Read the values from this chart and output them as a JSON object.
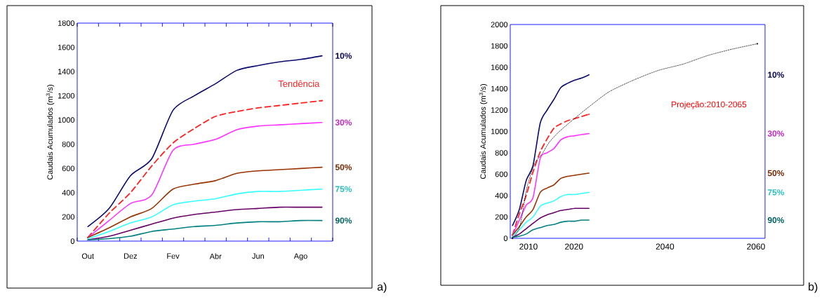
{
  "chart_data": [
    {
      "type": "line",
      "categories": [
        "Out",
        null,
        "Dez",
        null,
        "Fev",
        null,
        "Abr",
        null,
        "Jun",
        null,
        "Ago",
        null
      ],
      "ylabel": "Caudais Acumulados (m$^{3}$/s)",
      "ylim": [
        0,
        1800
      ],
      "yticks": [
        0,
        200,
        400,
        600,
        800,
        1000,
        1200,
        1400,
        1600,
        1800
      ],
      "annotations": [
        "a)"
      ],
      "series": [
        {
          "name": "10%",
          "color": "#0a0a6e",
          "values": [
            120,
            270,
            540,
            680,
            1080,
            1200,
            1300,
            1410,
            1450,
            1480,
            1500,
            1530
          ]
        },
        {
          "name": "Tendência",
          "color": "#ff2020",
          "line_style": "dashed",
          "values": [
            30,
            230,
            400,
            620,
            810,
            930,
            1030,
            1070,
            1100,
            1120,
            1140,
            1160
          ]
        },
        {
          "name": "30%",
          "color": "#ff33ff",
          "values": [
            30,
            170,
            310,
            380,
            750,
            800,
            840,
            920,
            950,
            960,
            970,
            980
          ]
        },
        {
          "name": "50%",
          "color": "#993300",
          "values": [
            30,
            110,
            200,
            270,
            430,
            470,
            500,
            560,
            580,
            590,
            600,
            610
          ]
        },
        {
          "name": "75%",
          "color": "#33ffff",
          "values": [
            20,
            80,
            150,
            200,
            300,
            330,
            350,
            390,
            410,
            410,
            420,
            430
          ]
        },
        {
          "color": "#660066",
          "values": [
            10,
            40,
            90,
            140,
            190,
            220,
            240,
            260,
            270,
            280,
            280,
            280
          ]
        },
        {
          "name": "90%",
          "color": "#008080",
          "values": [
            10,
            20,
            40,
            80,
            100,
            120,
            130,
            150,
            160,
            160,
            170,
            170
          ]
        }
      ]
    },
    {
      "type": "line",
      "xlim": [
        2006,
        2062
      ],
      "xticks": [
        2010,
        2020,
        2040,
        2060
      ],
      "ylabel": "Caudais Acumulados (m$^{3}$/s)",
      "ylim": [
        0,
        2000
      ],
      "yticks": [
        0,
        200,
        400,
        600,
        800,
        1000,
        1200,
        1400,
        1600,
        1800,
        2000
      ],
      "annotations": [
        "b)",
        "Projeção:2010-2065"
      ],
      "series": [
        {
          "name": "10%",
          "color": "#0a0a6e",
          "x": [
            2006.5,
            2008.0,
            2009.5,
            2011.0,
            2012.6,
            2014.1,
            2015.6,
            2017.1,
            2018.6,
            2020.2,
            2021.7,
            2023.3
          ],
          "values": [
            120,
            270,
            540,
            680,
            1080,
            1200,
            1300,
            1410,
            1450,
            1480,
            1500,
            1530
          ]
        },
        {
          "color": "#ff2020",
          "line_style": "dashed",
          "x": [
            2006.5,
            2008.0,
            2009.5,
            2011.0,
            2012.6,
            2014.1,
            2015.6,
            2017.1,
            2018.6,
            2020.2,
            2021.7,
            2023.3
          ],
          "values": [
            30,
            230,
            400,
            620,
            810,
            930,
            1030,
            1070,
            1100,
            1120,
            1140,
            1160
          ]
        },
        {
          "name": "30%",
          "color": "#ff33ff",
          "x": [
            2006.5,
            2008.0,
            2009.5,
            2011.0,
            2012.6,
            2014.1,
            2015.6,
            2017.1,
            2018.6,
            2020.2,
            2021.7,
            2023.3
          ],
          "values": [
            30,
            170,
            310,
            380,
            750,
            800,
            840,
            920,
            950,
            960,
            970,
            980
          ]
        },
        {
          "name": "50%",
          "color": "#993300",
          "x": [
            2006.5,
            2008.0,
            2009.5,
            2011.0,
            2012.6,
            2014.1,
            2015.6,
            2017.1,
            2018.6,
            2020.2,
            2021.7,
            2023.3
          ],
          "values": [
            30,
            110,
            200,
            270,
            430,
            470,
            500,
            560,
            580,
            590,
            600,
            610
          ]
        },
        {
          "name": "75%",
          "color": "#33ffff",
          "x": [
            2006.5,
            2008.0,
            2009.5,
            2011.0,
            2012.6,
            2014.1,
            2015.6,
            2017.1,
            2018.6,
            2020.2,
            2021.7,
            2023.3
          ],
          "values": [
            20,
            80,
            150,
            200,
            300,
            330,
            350,
            390,
            410,
            410,
            420,
            430
          ]
        },
        {
          "color": "#660066",
          "x": [
            2006.5,
            2008.0,
            2009.5,
            2011.0,
            2012.6,
            2014.1,
            2015.6,
            2017.1,
            2018.6,
            2020.2,
            2021.7,
            2023.3
          ],
          "values": [
            10,
            40,
            90,
            140,
            190,
            220,
            240,
            260,
            270,
            280,
            280,
            280
          ]
        },
        {
          "name": "90%",
          "color": "#008080",
          "x": [
            2006.5,
            2008.0,
            2009.5,
            2011.0,
            2012.6,
            2014.1,
            2015.6,
            2017.1,
            2018.6,
            2020.2,
            2021.7,
            2023.3
          ],
          "values": [
            10,
            20,
            40,
            80,
            100,
            120,
            130,
            150,
            160,
            160,
            170,
            170
          ]
        },
        {
          "color": "#000000",
          "line_style": "dotted",
          "x": [
            2006.5,
            2008.1,
            2009.7,
            2011.4,
            2013.0,
            2014.6,
            2016.8,
            2020.1,
            2023.3,
            2027.7,
            2033.1,
            2038.5,
            2044.0,
            2049.4,
            2054.8,
            2060.3
          ],
          "values": [
            0,
            110,
            480,
            700,
            790,
            900,
            1000,
            1120,
            1230,
            1370,
            1480,
            1570,
            1630,
            1710,
            1770,
            1820
          ]
        }
      ]
    }
  ]
}
